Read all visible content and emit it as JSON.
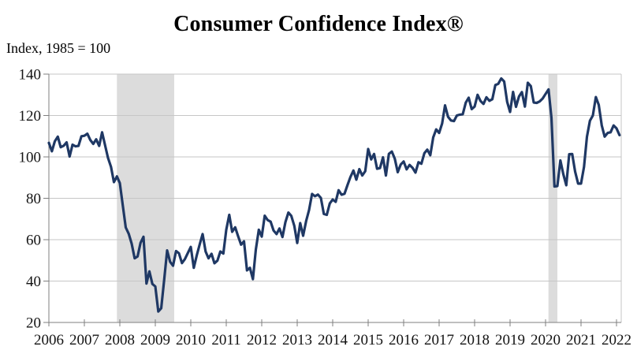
{
  "chart": {
    "title": "Consumer Confidence Index®",
    "y_axis_note": "Index,  1985 = 100"
  },
  "chart_data": {
    "type": "line",
    "title": "Consumer Confidence Index®",
    "ylabel": "Index, 1985 = 100",
    "xlabel": "",
    "frequency": "monthly",
    "x_start": "2006-01",
    "x_end": "2022-02",
    "xlim": [
      2006.0,
      2022.133
    ],
    "ylim": [
      20,
      140
    ],
    "y_ticks": [
      20,
      40,
      60,
      80,
      100,
      120,
      140
    ],
    "x_ticks": [
      2006,
      2007,
      2008,
      2009,
      2010,
      2011,
      2012,
      2013,
      2014,
      2015,
      2016,
      2017,
      2018,
      2019,
      2020,
      2021,
      2022
    ],
    "grid": "horizontal",
    "legend": "none",
    "recession_bands": [
      {
        "label": "Dec 2007 - Jun 2009 recession",
        "from": 2007.917,
        "to": 2009.533
      },
      {
        "label": "Feb 2020 - Apr 2020 recession",
        "from": 2020.083,
        "to": 2020.333
      }
    ],
    "colors": {
      "line": "#1f3864",
      "recession_band": "#dcdcdc",
      "gridline": "#c6c6c6",
      "axis": "#7f7f7f",
      "tick_label": "#141414"
    },
    "series": [
      {
        "name": "Consumer Confidence Index",
        "monthly_values": {
          "2006": [
            106.8,
            102.7,
            107.5,
            109.8,
            104.7,
            105.4,
            107.0,
            100.2,
            105.9,
            105.1,
            105.3,
            110.0
          ],
          "2007": [
            110.2,
            111.2,
            108.2,
            106.3,
            108.5,
            105.3,
            111.9,
            105.6,
            99.5,
            95.2,
            87.8,
            90.6
          ],
          "2008": [
            87.3,
            76.4,
            65.9,
            62.8,
            58.1,
            51.0,
            51.9,
            58.5,
            61.4,
            38.8,
            44.7,
            38.6
          ],
          "2009": [
            37.4,
            25.3,
            26.9,
            40.8,
            54.8,
            49.3,
            47.4,
            54.5,
            53.4,
            48.7,
            50.6,
            53.6
          ],
          "2010": [
            56.5,
            46.4,
            52.3,
            57.7,
            62.7,
            54.3,
            51.0,
            53.2,
            48.6,
            49.9,
            54.3,
            53.3
          ],
          "2011": [
            64.8,
            72.0,
            63.8,
            66.0,
            61.7,
            57.6,
            59.2,
            45.2,
            46.4,
            40.9,
            55.2,
            64.8
          ],
          "2012": [
            61.5,
            71.6,
            69.5,
            68.7,
            64.4,
            62.7,
            65.4,
            61.3,
            68.4,
            73.1,
            71.5,
            66.7
          ],
          "2013": [
            58.4,
            68.0,
            61.9,
            69.0,
            74.3,
            82.1,
            81.0,
            81.8,
            80.2,
            72.4,
            72.0,
            77.5
          ],
          "2014": [
            79.4,
            78.3,
            83.9,
            81.7,
            82.2,
            86.4,
            90.3,
            93.4,
            89.0,
            94.1,
            91.0,
            93.1
          ],
          "2015": [
            103.8,
            98.8,
            101.4,
            94.3,
            94.6,
            99.8,
            91.0,
            101.5,
            102.6,
            99.1,
            92.6,
            96.3
          ],
          "2016": [
            97.8,
            94.0,
            96.1,
            94.7,
            92.4,
            97.4,
            96.7,
            101.8,
            103.5,
            100.8,
            109.4,
            113.3
          ],
          "2017": [
            111.6,
            116.1,
            124.9,
            119.4,
            117.6,
            117.3,
            120.0,
            120.4,
            120.6,
            126.2,
            128.6,
            123.1
          ],
          "2018": [
            124.3,
            130.0,
            127.0,
            125.6,
            128.8,
            127.1,
            127.9,
            134.7,
            135.3,
            137.9,
            136.4,
            126.6
          ],
          "2019": [
            121.7,
            131.4,
            124.2,
            129.2,
            131.3,
            124.3,
            135.8,
            134.2,
            126.3,
            126.1,
            126.8,
            128.2
          ],
          "2020": [
            130.4,
            132.6,
            118.8,
            85.7,
            85.9,
            98.3,
            91.7,
            86.3,
            101.3,
            101.4,
            92.9,
            87.1
          ],
          "2021": [
            87.1,
            95.2,
            109.7,
            117.5,
            120.0,
            128.9,
            125.1,
            115.2,
            109.8,
            111.6,
            111.9,
            115.2
          ],
          "2022": [
            113.8,
            110.5
          ]
        }
      }
    ]
  }
}
